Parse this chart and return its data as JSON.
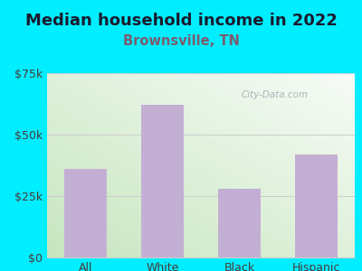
{
  "title": "Median household income in 2022",
  "subtitle": "Brownsville, TN",
  "categories": [
    "All",
    "White",
    "Black",
    "Hispanic"
  ],
  "values": [
    36000,
    62000,
    28000,
    42000
  ],
  "bar_color": "#c4afd4",
  "ylim": [
    0,
    75000
  ],
  "yticks": [
    0,
    25000,
    50000,
    75000
  ],
  "ytick_labels": [
    "$0",
    "$25k",
    "$50k",
    "$75k"
  ],
  "background_outer": "#00eeff",
  "title_color": "#1a1a2e",
  "subtitle_color": "#7a5c6e",
  "watermark": "City-Data.com",
  "grid_color": "#cccccc",
  "title_fontsize": 13,
  "subtitle_fontsize": 10.5,
  "tick_color": "#4a3a3a",
  "tick_fontsize": 9,
  "bg_colors_lr": [
    "#c8e6c0",
    "#f5f5f5"
  ],
  "bg_colors_tb": [
    "#f5f5f5",
    "#c8e6c0"
  ]
}
